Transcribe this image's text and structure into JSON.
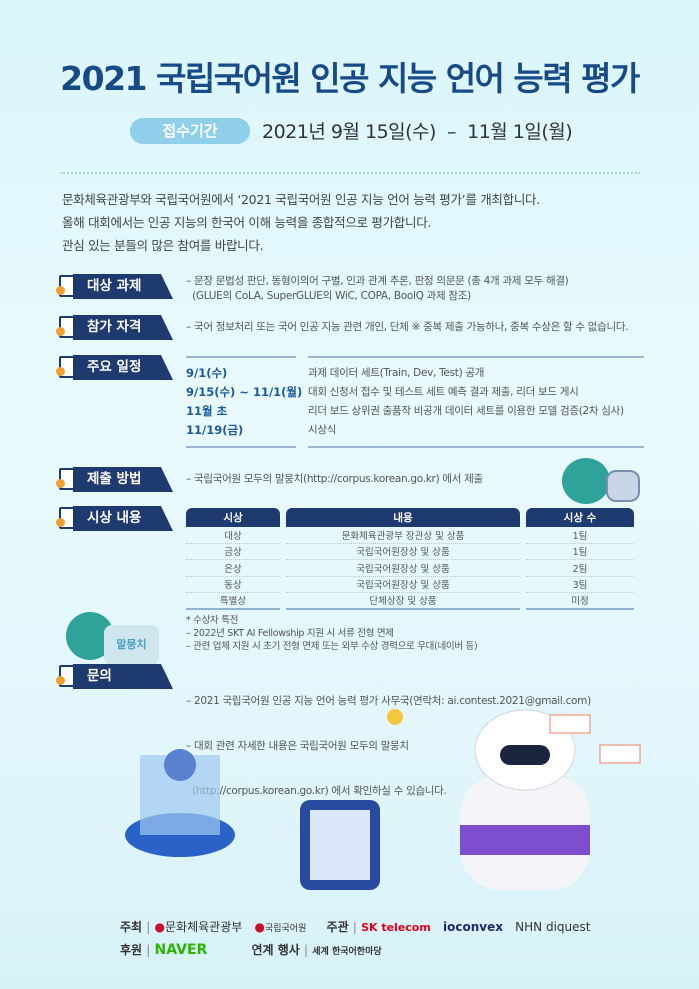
{
  "title": "2021 국립국어원 인공 지능 언어 능력 평가",
  "period": {
    "label": "접수기간",
    "value": "2021년 9월 15일(수)  –  11월 1일(월)"
  },
  "intro": [
    "문화체육관광부와 국립국어원에서 ‘2021 국립국어원 인공 지능 언어 능력 평가’를 개최합니다.",
    "올해 대회에서는 인공 지능의 한국어 이해 능력을 종합적으로 평가합니다.",
    "관심 있는 분들의 많은 참여를 바랍니다."
  ],
  "sections": {
    "task": {
      "label": "대상 과제",
      "lines": [
        "– 문장 문법성 판단, 동형이의어 구별, 인과 관계 추론, 판정 의문문 (총 4개 과제 모두 해결)",
        "  (GLUE의 CoLA, SuperGLUE의 WiC, COPA, BoolQ 과제 참조)"
      ]
    },
    "eligibility": {
      "label": "참가 자격",
      "lines": [
        "– 국어 정보처리 또는 국어 인공 지능 관련 개인, 단체 ※ 중복 제출 가능하나, 중복 수상은 할 수 없습니다."
      ]
    },
    "schedule": {
      "label": "주요 일정",
      "rows": [
        {
          "date": "9/1(수)",
          "desc": "과제 데이터 세트(Train, Dev, Test) 공개"
        },
        {
          "date": "9/15(수) ~ 11/1(월)",
          "desc": "대회 신청서 접수 및 테스트 세트 예측 결과 제출, 리더 보드 게시"
        },
        {
          "date": "11월 초",
          "desc": "리더 보드 상위권 출품작 비공개 데이터 세트를 이용한 모델 검증(2차 심사)"
        },
        {
          "date": "11/19(금)",
          "desc": "시상식"
        }
      ]
    },
    "submission": {
      "label": "제출 방법",
      "lines": [
        "– 국립국어원 모두의 말뭉치(http://corpus.korean.go.kr) 에서 제출"
      ]
    },
    "awards": {
      "label": "시상 내용",
      "headers": [
        "시상",
        "내용",
        "시상 수"
      ],
      "rows": [
        [
          "대상",
          "문화체육관광부 장관상 및 상품",
          "1팀"
        ],
        [
          "금상",
          "국립국어원장상 및 상품",
          "1팀"
        ],
        [
          "은상",
          "국립국어원장상 및 상품",
          "2팀"
        ],
        [
          "동상",
          "국립국어원장상 및 상품",
          "3팀"
        ],
        [
          "특별상",
          "단체상장 및 상품",
          "미정"
        ]
      ],
      "notes": [
        "* 수상자 특전",
        "– 2022년 SKT AI Fellowship 지원 시 서류 전형 면제",
        "– 관련 업체 지원 시 초기 전형 면제 또는 외부 수상 경력으로 우대(네이버 등)"
      ]
    },
    "contact": {
      "label": "문의",
      "lines": [
        "– 2021 국립국어원 인공 지능 언어 능력 평가 사무국(연락처: ai.contest.2021@gmail.com)",
        "– 대회 관련 자세한 내용은 국립국어원 모두의 말뭉치",
        "  (http://corpus.korean.go.kr) 에서 확인하실 수 있습니다."
      ]
    }
  },
  "mascot_sign": "말뭉치",
  "footer": {
    "host_label": "주최",
    "hosts": [
      "문화체육관광부",
      "국립국어원"
    ],
    "organizer_label": "주관",
    "organizers": [
      "SK telecom",
      "ioconvex",
      "NHN diquest"
    ],
    "sponsor_label": "후원",
    "sponsors": [
      "NAVER"
    ],
    "related_label": "연계 행사",
    "related": [
      "세계 한국어한마당"
    ]
  },
  "colors": {
    "navy": "#1f3a6e",
    "title": "#174a86",
    "pill": "#8fcfe9",
    "naver": "#2db400",
    "skt": "#e2001a"
  }
}
